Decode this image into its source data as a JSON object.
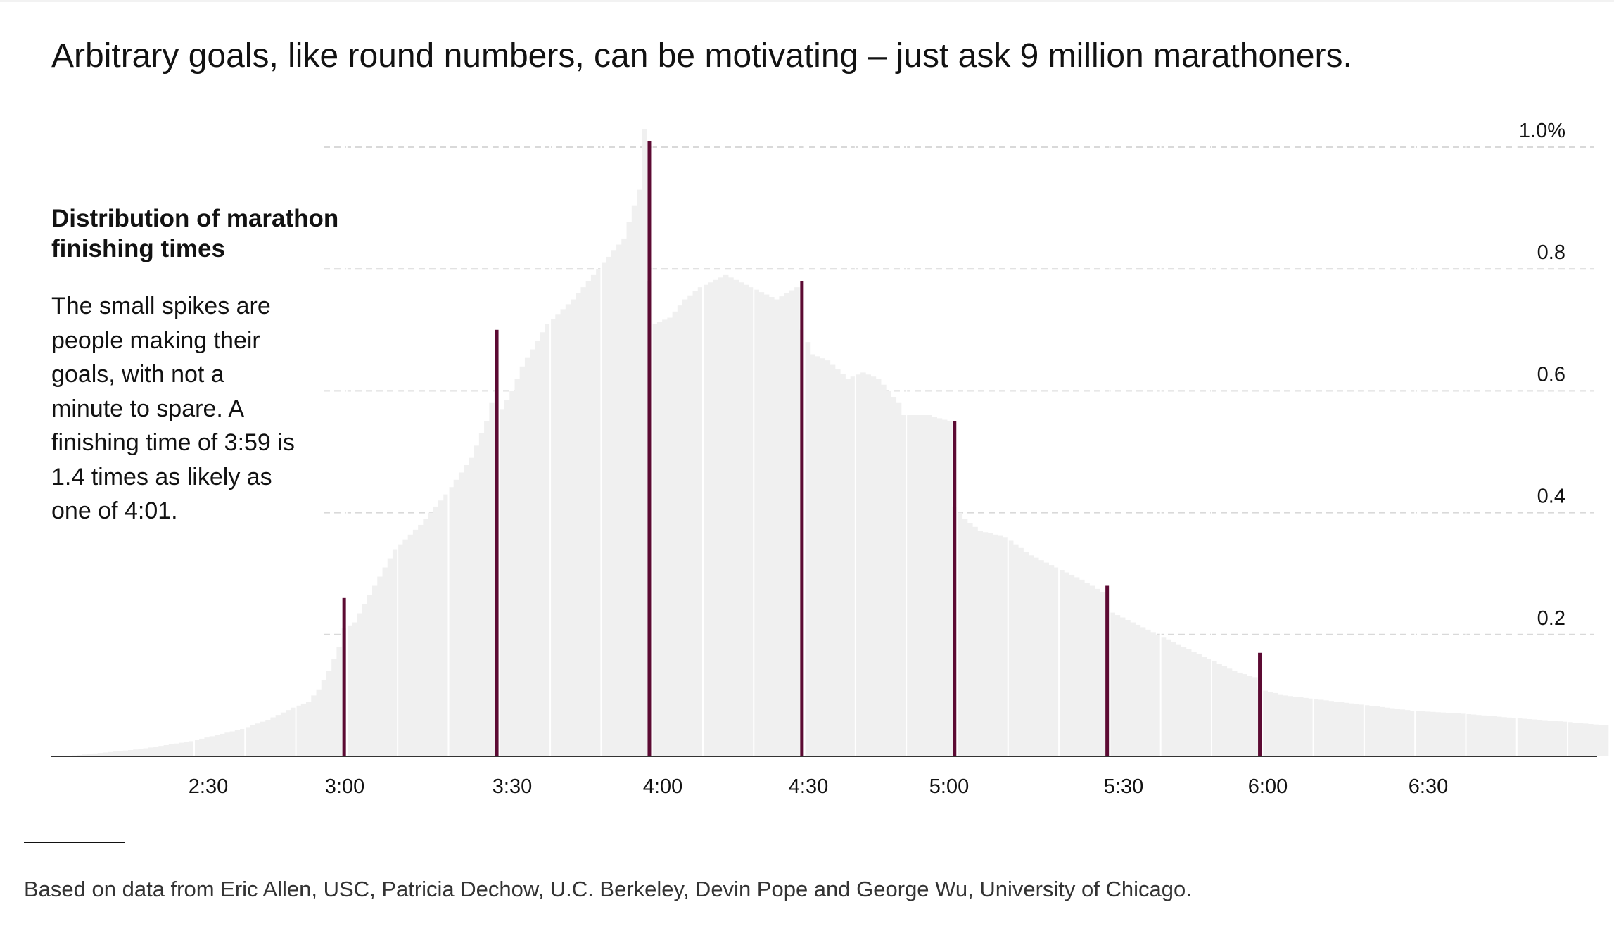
{
  "headline": "Arbitrary goals, like round numbers, can be motivating – just ask 9 million marathoners.",
  "chart_data": {
    "type": "bar",
    "title": "Distribution of marathon finishing times",
    "annotation": "The small spikes are people making their goals, with not a minute to spare. A finishing time of 3:59 is 1.4 times as likely as one of 4:01.",
    "xlabel": "",
    "ylabel": "",
    "x_unit": "finishing time (h:mm), one bar per minute",
    "x_range_minutes": [
      125,
      429
    ],
    "ylim": [
      0,
      1.07
    ],
    "y_unit": "% of finishers",
    "y_ticks": [
      {
        "value": 0.2,
        "label": "0.2"
      },
      {
        "value": 0.4,
        "label": "0.4"
      },
      {
        "value": 0.6,
        "label": "0.6"
      },
      {
        "value": 0.8,
        "label": "0.8"
      },
      {
        "value": 1.0,
        "label": "1.0%"
      }
    ],
    "x_ticks": [
      {
        "minute": 150,
        "label": "2:30"
      },
      {
        "minute": 180,
        "label": "3:00"
      },
      {
        "minute": 210,
        "label": "3:30"
      },
      {
        "minute": 240,
        "label": "4:00"
      },
      {
        "minute": 270,
        "label": "4:30"
      },
      {
        "minute": 300,
        "label": "5:00"
      },
      {
        "minute": 330,
        "label": "5:30"
      },
      {
        "minute": 360,
        "label": "6:00"
      },
      {
        "minute": 390,
        "label": "6:30"
      }
    ],
    "grid": true,
    "distribution_anchor_points": [
      [
        125,
        0.0
      ],
      [
        140,
        0.012
      ],
      [
        150,
        0.025
      ],
      [
        160,
        0.045
      ],
      [
        165,
        0.06
      ],
      [
        170,
        0.08
      ],
      [
        173,
        0.09
      ],
      [
        175,
        0.11
      ],
      [
        177,
        0.14
      ],
      [
        179,
        0.18
      ],
      [
        180,
        0.21
      ],
      [
        182,
        0.22
      ],
      [
        186,
        0.28
      ],
      [
        190,
        0.34
      ],
      [
        195,
        0.38
      ],
      [
        200,
        0.43
      ],
      [
        205,
        0.49
      ],
      [
        208,
        0.55
      ],
      [
        209,
        0.58
      ],
      [
        210,
        0.6
      ],
      [
        211,
        0.57
      ],
      [
        213,
        0.6
      ],
      [
        215,
        0.64
      ],
      [
        220,
        0.71
      ],
      [
        225,
        0.75
      ],
      [
        230,
        0.8
      ],
      [
        235,
        0.85
      ],
      [
        238,
        0.93
      ],
      [
        239,
        1.03
      ],
      [
        240,
        0.78
      ],
      [
        241,
        0.71
      ],
      [
        244,
        0.72
      ],
      [
        247,
        0.75
      ],
      [
        250,
        0.77
      ],
      [
        255,
        0.79
      ],
      [
        260,
        0.77
      ],
      [
        265,
        0.75
      ],
      [
        269,
        0.77
      ],
      [
        270,
        0.7
      ],
      [
        272,
        0.66
      ],
      [
        275,
        0.65
      ],
      [
        279,
        0.62
      ],
      [
        282,
        0.63
      ],
      [
        285,
        0.62
      ],
      [
        289,
        0.58
      ],
      [
        290,
        0.56
      ],
      [
        295,
        0.56
      ],
      [
        299,
        0.55
      ],
      [
        300,
        0.41
      ],
      [
        302,
        0.39
      ],
      [
        305,
        0.37
      ],
      [
        310,
        0.36
      ],
      [
        315,
        0.33
      ],
      [
        320,
        0.31
      ],
      [
        325,
        0.29
      ],
      [
        329,
        0.27
      ],
      [
        330,
        0.24
      ],
      [
        335,
        0.22
      ],
      [
        340,
        0.2
      ],
      [
        345,
        0.18
      ],
      [
        350,
        0.16
      ],
      [
        355,
        0.14
      ],
      [
        359,
        0.13
      ],
      [
        360,
        0.11
      ],
      [
        365,
        0.1
      ],
      [
        370,
        0.095
      ],
      [
        380,
        0.085
      ],
      [
        390,
        0.075
      ],
      [
        400,
        0.07
      ],
      [
        410,
        0.063
      ],
      [
        420,
        0.057
      ],
      [
        429,
        0.05
      ]
    ],
    "highlight_series": {
      "name": "",
      "color": "#5c0a33",
      "points": [
        {
          "minute": 180,
          "label": "2:59",
          "value": 0.26
        },
        {
          "minute": 210,
          "label": "3:29",
          "value": 0.7
        },
        {
          "minute": 240,
          "label": "3:59",
          "value": 1.01
        },
        {
          "minute": 270,
          "label": "4:29",
          "value": 0.78
        },
        {
          "minute": 300,
          "label": "4:59",
          "value": 0.55
        },
        {
          "minute": 330,
          "label": "5:29",
          "value": 0.28
        },
        {
          "minute": 360,
          "label": "5:59",
          "value": 0.17
        }
      ]
    },
    "colors": {
      "distribution": "#f0f0f0",
      "highlight": "#5c0a33",
      "gridline": "#d9d9d9",
      "baseline": "#333333"
    }
  },
  "source_note": "Based on data from Eric Allen, USC, Patricia Dechow, U.C. Berkeley, Devin Pope and George Wu, University of Chicago."
}
